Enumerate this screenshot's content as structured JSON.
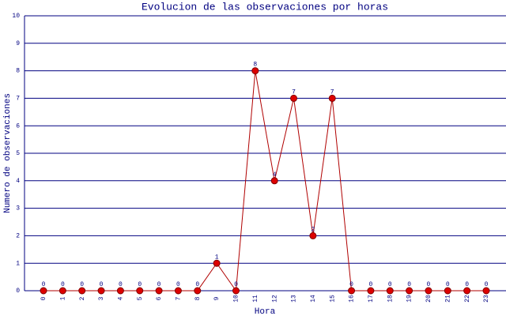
{
  "chart_data": {
    "type": "line",
    "title": "Evolucion de las observaciones por horas",
    "x_label": "Hora",
    "y_label": "Numero de observaciones",
    "categories": [
      "0",
      "1",
      "2",
      "3",
      "4",
      "5",
      "6",
      "7",
      "8",
      "9",
      "10",
      "11",
      "12",
      "13",
      "14",
      "15",
      "16",
      "17",
      "18",
      "19",
      "20",
      "21",
      "22",
      "23"
    ],
    "series": [
      {
        "color": "#b00000",
        "values": [
          0,
          0,
          0,
          0,
          0,
          0,
          0,
          0,
          0,
          1,
          0,
          8,
          4,
          7,
          2,
          7,
          0,
          0,
          0,
          0,
          0,
          0,
          0,
          0
        ]
      }
    ],
    "ylim": [
      0,
      10
    ],
    "yticks": [
      0,
      1,
      2,
      3,
      4,
      5,
      6,
      7,
      8,
      9,
      10
    ],
    "grid": true
  }
}
